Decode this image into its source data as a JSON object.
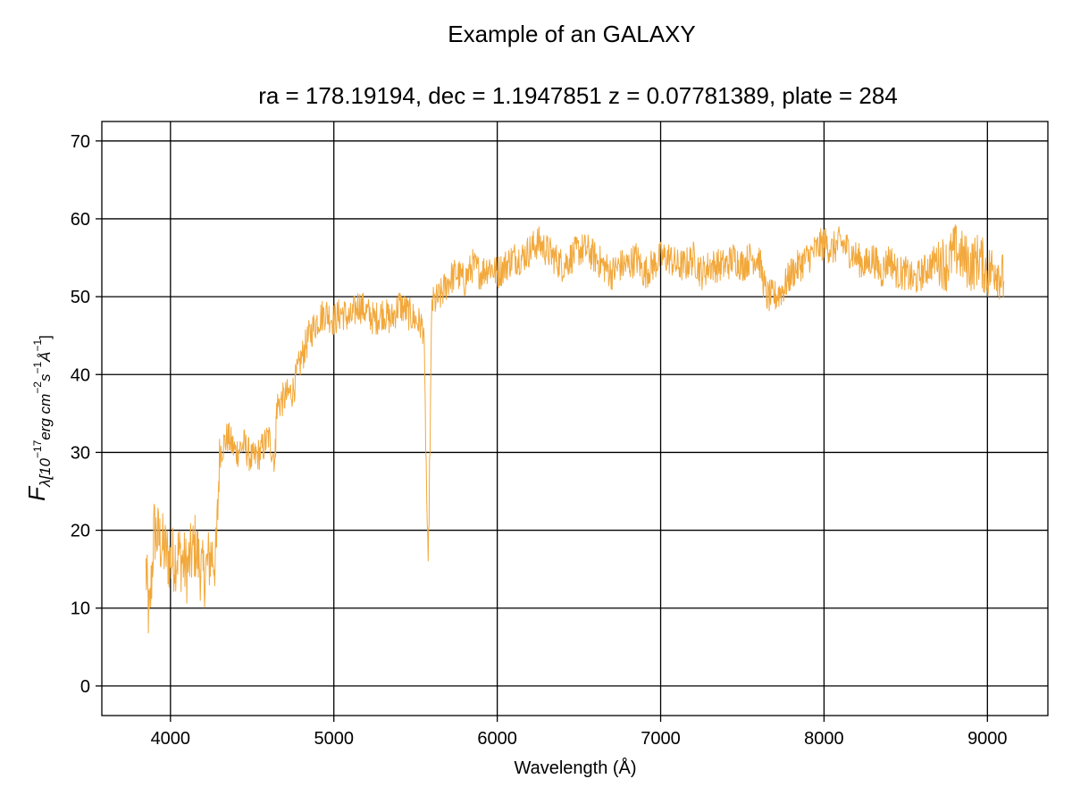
{
  "chart_data": {
    "type": "line",
    "suptitle": "Example of an GALAXY",
    "title": "ra = 178.19194, dec = 1.1947851 z = 0.07781389, plate = 284",
    "xlabel": "Wavelength (Å)",
    "ylabel": {
      "main": "F",
      "sub": "λ[10",
      "sup1": "−17",
      "mid": "erg cm",
      "sup2": "−2",
      "mid2": "s",
      "sup3": "−1",
      "mid3": "Å",
      "sup4": "−1",
      "end": "]"
    },
    "xlim": [
      3580,
      9370
    ],
    "ylim": [
      -3.8,
      72.5
    ],
    "xticks": [
      4000,
      5000,
      6000,
      7000,
      8000,
      9000
    ],
    "yticks": [
      0,
      10,
      20,
      30,
      40,
      50,
      60,
      70
    ],
    "grid": true,
    "series": [
      {
        "color": "#f2a83b",
        "x": [
          3850,
          3870,
          3900,
          3950,
          4000,
          4050,
          4100,
          4150,
          4200,
          4250,
          4280,
          4300,
          4350,
          4400,
          4450,
          4500,
          4550,
          4600,
          4640,
          4650,
          4700,
          4750,
          4800,
          4850,
          4900,
          4950,
          5000,
          5050,
          5100,
          5150,
          5200,
          5250,
          5300,
          5350,
          5400,
          5450,
          5500,
          5550,
          5577,
          5600,
          5650,
          5700,
          5750,
          5800,
          5850,
          5900,
          5950,
          6000,
          6050,
          6100,
          6150,
          6200,
          6250,
          6300,
          6350,
          6400,
          6450,
          6500,
          6550,
          6600,
          6650,
          6700,
          6750,
          6800,
          6850,
          6900,
          6950,
          7000,
          7050,
          7100,
          7150,
          7200,
          7250,
          7300,
          7350,
          7400,
          7450,
          7500,
          7550,
          7600,
          7650,
          7700,
          7750,
          7800,
          7850,
          7900,
          7950,
          8000,
          8050,
          8100,
          8150,
          8200,
          8250,
          8300,
          8350,
          8400,
          8450,
          8500,
          8550,
          8600,
          8650,
          8700,
          8750,
          8800,
          8850,
          8900,
          8950,
          9000,
          9050,
          9100
        ],
        "y": [
          15,
          8,
          20,
          18,
          16,
          17,
          15,
          18,
          14,
          17,
          16,
          30,
          32,
          30,
          31,
          29,
          30,
          32,
          29,
          36,
          37,
          38,
          42,
          45,
          47,
          48,
          47,
          48,
          47,
          49,
          48,
          47,
          48,
          47,
          49,
          48,
          47,
          46,
          14,
          49,
          50,
          52,
          53,
          52,
          54,
          53,
          54,
          53,
          54,
          55,
          55,
          56,
          57,
          56,
          55,
          54,
          55,
          56,
          56,
          55,
          54,
          53,
          54,
          54,
          55,
          53,
          54,
          55,
          55,
          54,
          54,
          55,
          53,
          54,
          54,
          54,
          55,
          54,
          55,
          55,
          50,
          50,
          51,
          53,
          54,
          55,
          56,
          57,
          56,
          57,
          56,
          55,
          54,
          55,
          53,
          55,
          53,
          53,
          52,
          53,
          54,
          55,
          54,
          56,
          55,
          54,
          55,
          53,
          54,
          52
        ]
      }
    ]
  }
}
